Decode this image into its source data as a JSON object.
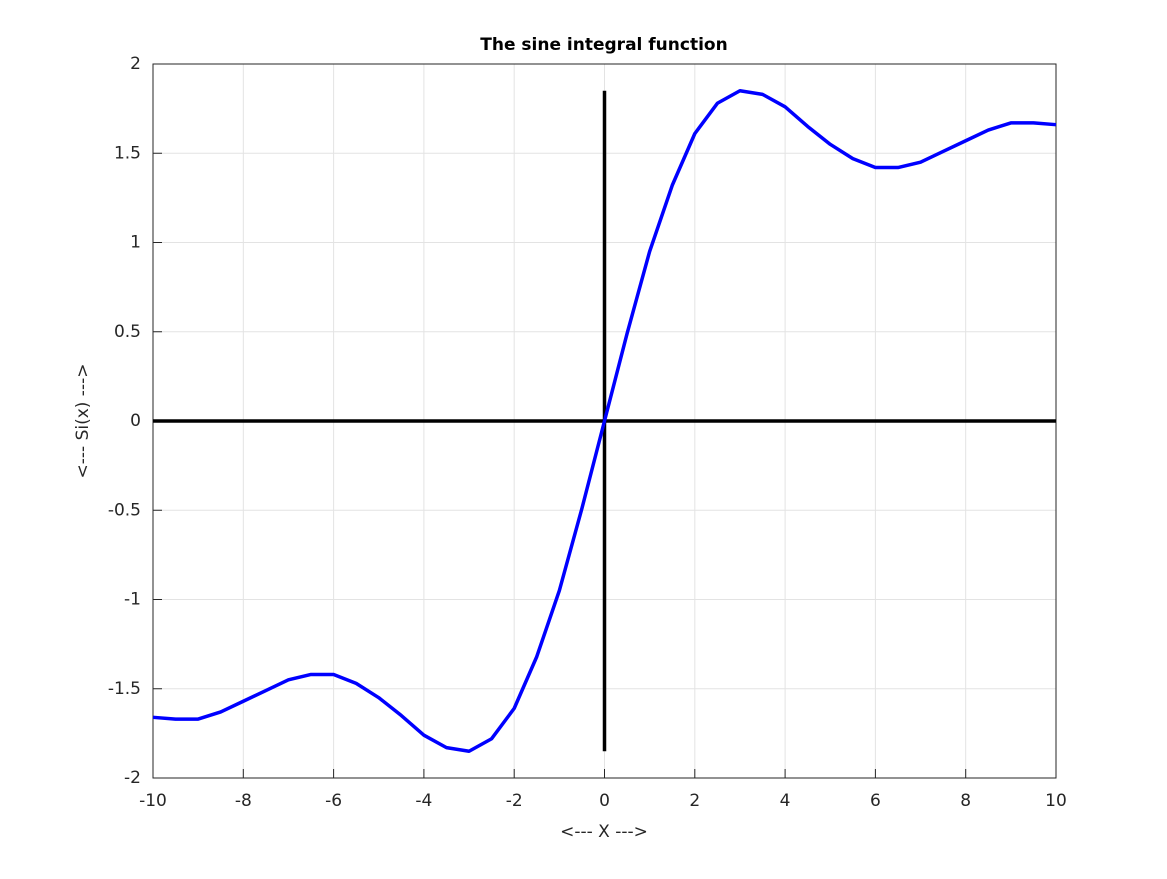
{
  "chart_data": {
    "type": "line",
    "title": "The sine integral function",
    "x_label": "<--- X --->",
    "y_label": "<--- Si(x) --->",
    "x": [
      -10,
      -9.5,
      -9,
      -8.5,
      -8,
      -7.5,
      -7,
      -6.5,
      -6,
      -5.5,
      -5,
      -4.5,
      -4,
      -3.5,
      -3,
      -2.5,
      -2,
      -1.5,
      -1,
      -0.5,
      0,
      0.5,
      1,
      1.5,
      2,
      2.5,
      3,
      3.5,
      4,
      4.5,
      5,
      5.5,
      6,
      6.5,
      7,
      7.5,
      8,
      8.5,
      9,
      9.5,
      10
    ],
    "series": [
      {
        "color": "#0000ff",
        "values": [
          -1.66,
          -1.67,
          -1.67,
          -1.63,
          -1.57,
          -1.51,
          -1.45,
          -1.42,
          -1.42,
          -1.47,
          -1.55,
          -1.65,
          -1.76,
          -1.83,
          -1.85,
          -1.78,
          -1.61,
          -1.32,
          -0.95,
          -0.49,
          0,
          0.49,
          0.95,
          1.32,
          1.61,
          1.78,
          1.85,
          1.83,
          1.76,
          1.65,
          1.55,
          1.47,
          1.42,
          1.42,
          1.45,
          1.51,
          1.57,
          1.63,
          1.67,
          1.67,
          1.66
        ]
      }
    ],
    "reference_lines": [
      {
        "color": "#000000",
        "x": [
          -10,
          10
        ],
        "values": [
          0,
          0
        ]
      },
      {
        "color": "#000000",
        "x": [
          0,
          0
        ],
        "values": [
          -1.85,
          1.85
        ]
      }
    ],
    "xlim": [
      -10,
      10
    ],
    "ylim": [
      -2,
      2
    ],
    "xticks": [
      -10,
      -8,
      -6,
      -4,
      -2,
      0,
      2,
      4,
      6,
      8,
      10
    ],
    "yticks": [
      -2,
      -1.5,
      -1,
      -0.5,
      0,
      0.5,
      1,
      1.5,
      2
    ],
    "grid": true
  }
}
